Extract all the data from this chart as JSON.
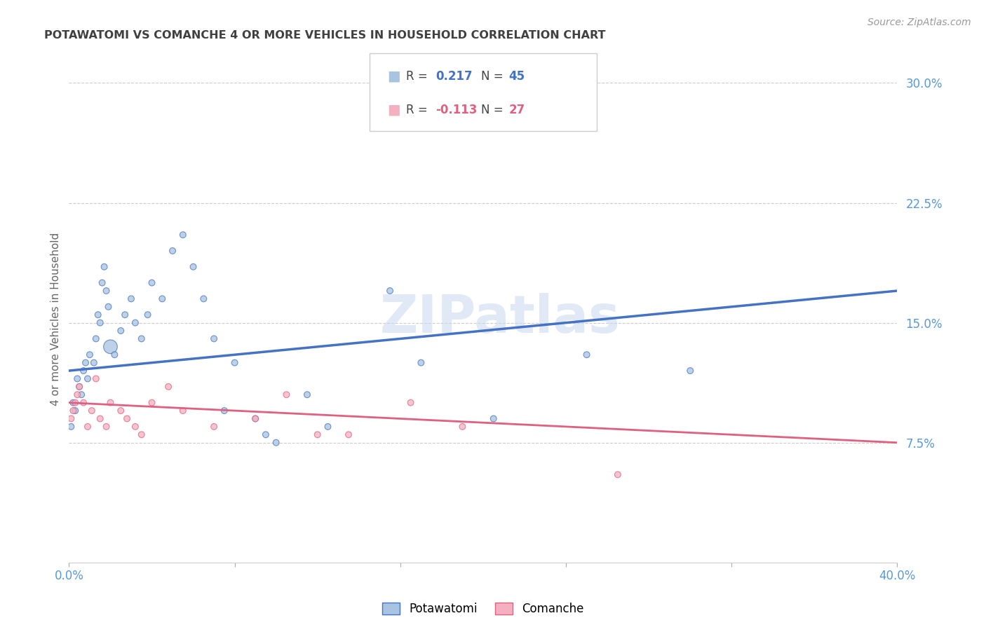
{
  "title": "POTAWATOMI VS COMANCHE 4 OR MORE VEHICLES IN HOUSEHOLD CORRELATION CHART",
  "source": "Source: ZipAtlas.com",
  "ylabel": "4 or more Vehicles in Household",
  "watermark": "ZIPatlas",
  "legend_blue_r": "0.217",
  "legend_blue_n": "45",
  "legend_pink_r": "-0.113",
  "legend_pink_n": "27",
  "xlim": [
    0.0,
    0.4
  ],
  "ylim": [
    0.0,
    0.3
  ],
  "yticks": [
    0.075,
    0.15,
    0.225,
    0.3
  ],
  "ytick_labels": [
    "7.5%",
    "15.0%",
    "22.5%",
    "30.0%"
  ],
  "xticks": [
    0.0,
    0.08,
    0.16,
    0.24,
    0.32,
    0.4
  ],
  "xtick_labels": [
    "0.0%",
    "",
    "",
    "",
    "",
    "40.0%"
  ],
  "blue_x": [
    0.001,
    0.002,
    0.003,
    0.004,
    0.005,
    0.006,
    0.007,
    0.008,
    0.009,
    0.01,
    0.012,
    0.013,
    0.014,
    0.015,
    0.016,
    0.017,
    0.018,
    0.019,
    0.02,
    0.022,
    0.025,
    0.027,
    0.03,
    0.032,
    0.035,
    0.038,
    0.04,
    0.045,
    0.05,
    0.055,
    0.06,
    0.065,
    0.07,
    0.075,
    0.08,
    0.09,
    0.095,
    0.1,
    0.115,
    0.125,
    0.155,
    0.17,
    0.205,
    0.25,
    0.3
  ],
  "blue_y": [
    0.085,
    0.1,
    0.095,
    0.115,
    0.11,
    0.105,
    0.12,
    0.125,
    0.115,
    0.13,
    0.125,
    0.14,
    0.155,
    0.15,
    0.175,
    0.185,
    0.17,
    0.16,
    0.135,
    0.13,
    0.145,
    0.155,
    0.165,
    0.15,
    0.14,
    0.155,
    0.175,
    0.165,
    0.195,
    0.205,
    0.185,
    0.165,
    0.14,
    0.095,
    0.125,
    0.09,
    0.08,
    0.075,
    0.105,
    0.085,
    0.17,
    0.125,
    0.09,
    0.13,
    0.12
  ],
  "blue_sizes": [
    40,
    40,
    40,
    40,
    40,
    40,
    40,
    40,
    40,
    40,
    40,
    40,
    40,
    40,
    40,
    40,
    40,
    40,
    200,
    40,
    40,
    40,
    40,
    40,
    40,
    40,
    40,
    40,
    40,
    40,
    40,
    40,
    40,
    40,
    40,
    40,
    40,
    40,
    40,
    40,
    40,
    40,
    40,
    40,
    40
  ],
  "pink_x": [
    0.001,
    0.002,
    0.003,
    0.004,
    0.005,
    0.007,
    0.009,
    0.011,
    0.013,
    0.015,
    0.018,
    0.02,
    0.025,
    0.028,
    0.032,
    0.035,
    0.04,
    0.048,
    0.055,
    0.07,
    0.09,
    0.105,
    0.12,
    0.135,
    0.165,
    0.19,
    0.265
  ],
  "pink_y": [
    0.09,
    0.095,
    0.1,
    0.105,
    0.11,
    0.1,
    0.085,
    0.095,
    0.115,
    0.09,
    0.085,
    0.1,
    0.095,
    0.09,
    0.085,
    0.08,
    0.1,
    0.11,
    0.095,
    0.085,
    0.09,
    0.105,
    0.08,
    0.08,
    0.1,
    0.085,
    0.055
  ],
  "pink_sizes": [
    40,
    40,
    40,
    40,
    40,
    40,
    40,
    40,
    40,
    40,
    40,
    40,
    40,
    40,
    40,
    40,
    40,
    40,
    40,
    40,
    40,
    40,
    40,
    40,
    40,
    40,
    40
  ],
  "blue_line_color": "#4472C4",
  "pink_line_color": "#E06080",
  "blue_dot_facecolor": "#A8C4E0",
  "pink_dot_facecolor": "#F4B0C0",
  "grid_color": "#CCCCCC",
  "bg_color": "#FFFFFF",
  "title_color": "#404040",
  "axis_label_color": "#5599DD",
  "right_axis_color": "#5599DD"
}
